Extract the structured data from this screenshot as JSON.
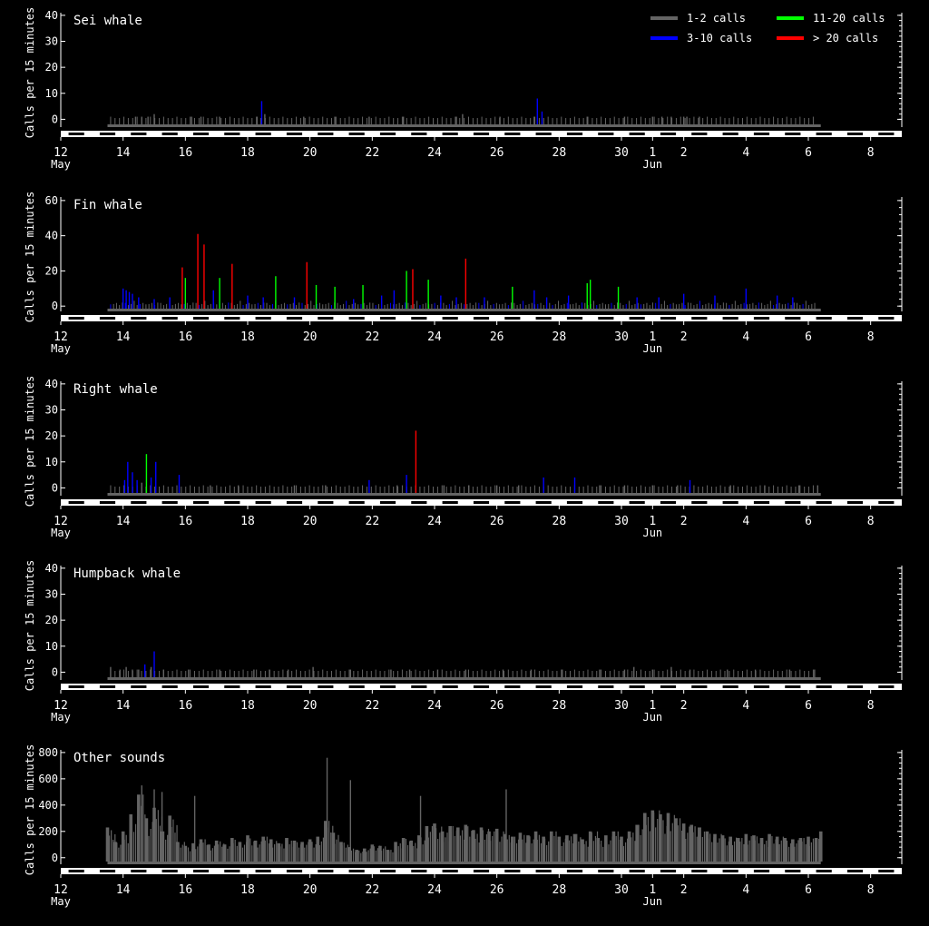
{
  "legend": {
    "position": "top-right",
    "items": [
      {
        "label": "1-2 calls",
        "color": "#646464"
      },
      {
        "label": "3-10 calls",
        "color": "#0000ff"
      },
      {
        "label": "11-20 calls",
        "color": "#00ff00"
      },
      {
        "label": "> 20 calls",
        "color": "#ff0000"
      }
    ]
  },
  "xaxis": {
    "tick_labels": [
      "12",
      "14",
      "16",
      "18",
      "20",
      "22",
      "24",
      "26",
      "28",
      "30",
      "1",
      "2",
      "4",
      "6",
      "8"
    ],
    "tick_days": [
      12,
      14,
      16,
      18,
      20,
      22,
      24,
      26,
      28,
      30,
      31,
      32,
      34,
      36,
      38
    ],
    "month_labels": [
      {
        "label": "May",
        "day": 12
      },
      {
        "label": "Jun",
        "day": 31
      }
    ],
    "range_days": [
      12,
      39
    ]
  },
  "chart_data": [
    {
      "type": "bar",
      "title": "Sei whale",
      "ylabel": "Calls per 15 minutes",
      "ylim": [
        -3,
        41
      ],
      "yticks": [
        "0",
        "10",
        "20",
        "30",
        "40"
      ],
      "ytick_values": [
        0,
        10,
        20,
        30,
        40
      ],
      "x_unit": "day (May 12 = 12, Jun 1 = 31)",
      "background_low": true,
      "x": [
        14.4,
        14.6,
        14.8,
        15.0,
        16.2,
        16.5,
        17.1,
        18.3,
        18.45,
        18.55,
        19.8,
        20.8,
        21.9,
        23.0,
        24.7,
        24.9,
        26.1,
        27.2,
        27.3,
        27.45,
        28.9,
        30.1,
        31.0,
        31.3,
        31.6,
        32.0,
        32.1,
        32.5
      ],
      "values": [
        1,
        1,
        1,
        2,
        1,
        1,
        1,
        1,
        7,
        2,
        1,
        1,
        1,
        1,
        1,
        2,
        1,
        1,
        8,
        3,
        1,
        1,
        1,
        1,
        1,
        1,
        1,
        1
      ]
    },
    {
      "type": "bar",
      "title": "Fin whale",
      "ylabel": "Calls per 15 minutes",
      "ylim": [
        -3,
        62
      ],
      "yticks": [
        "0",
        "20",
        "40",
        "60"
      ],
      "ytick_values": [
        0,
        20,
        40,
        60
      ],
      "x_unit": "day (May 12 = 12, Jun 1 = 31)",
      "background_high": true,
      "x": [
        14.0,
        14.1,
        14.2,
        14.3,
        14.5,
        15.0,
        15.5,
        15.9,
        16.0,
        16.4,
        16.6,
        16.9,
        17.1,
        17.5,
        18.0,
        18.5,
        18.9,
        19.5,
        19.9,
        20.2,
        20.8,
        21.4,
        21.7,
        22.3,
        22.7,
        23.1,
        23.3,
        23.8,
        24.2,
        24.7,
        25.0,
        25.6,
        26.5,
        27.2,
        27.6,
        28.3,
        28.9,
        29.0,
        29.9,
        30.5,
        31.2,
        32.0,
        33.0,
        34.0,
        35.0,
        35.5
      ],
      "values": [
        10,
        9,
        8,
        7,
        5,
        4,
        5,
        22,
        16,
        41,
        35,
        9,
        16,
        24,
        6,
        5,
        17,
        5,
        25,
        12,
        11,
        4,
        12,
        6,
        9,
        20,
        21,
        15,
        6,
        5,
        27,
        5,
        11,
        9,
        5,
        6,
        13,
        15,
        11,
        5,
        5,
        7,
        6,
        10,
        6,
        5
      ]
    },
    {
      "type": "bar",
      "title": "Right whale",
      "ylabel": "Calls per 15 minutes",
      "ylim": [
        -3,
        41
      ],
      "yticks": [
        "0",
        "10",
        "20",
        "30",
        "40"
      ],
      "ytick_values": [
        0,
        10,
        20,
        30,
        40
      ],
      "x_unit": "day (May 12 = 12, Jun 1 = 31)",
      "background_low": true,
      "x": [
        14.05,
        14.15,
        14.3,
        14.45,
        14.6,
        14.75,
        14.9,
        15.05,
        15.8,
        16.8,
        17.7,
        19.5,
        20.5,
        21.9,
        22.8,
        23.1,
        23.4,
        24.3,
        25.1,
        26.0,
        26.7,
        27.5,
        28.5,
        29.3,
        30.1,
        31.0,
        31.8,
        32.2,
        33.5,
        34.6,
        35.7,
        36.3
      ],
      "values": [
        3,
        10,
        6,
        3,
        2,
        13,
        4,
        10,
        5,
        1,
        1,
        1,
        1,
        3,
        1,
        5,
        22,
        1,
        1,
        1,
        1,
        4,
        4,
        1,
        1,
        1,
        1,
        3,
        1,
        1,
        1,
        1
      ]
    },
    {
      "type": "bar",
      "title": "Humpback whale",
      "ylabel": "Calls per 15 minutes",
      "ylim": [
        -3,
        41
      ],
      "yticks": [
        "0",
        "10",
        "20",
        "30",
        "40"
      ],
      "ytick_values": [
        0,
        10,
        20,
        30,
        40
      ],
      "x_unit": "day (May 12 = 12, Jun 1 = 31)",
      "background_low": true,
      "x": [
        13.6,
        13.9,
        14.1,
        14.3,
        14.5,
        14.7,
        14.9,
        15.0,
        15.3,
        16.1,
        17.1,
        18.2,
        18.7,
        19.3,
        20.1,
        21.3,
        22.6,
        23.2,
        24.1,
        25.0,
        26.2,
        27.1,
        28.1,
        29.3,
        30.1,
        30.4,
        31.0,
        31.6,
        32.2,
        33.4,
        34.3,
        35.4,
        36.2
      ],
      "values": [
        2,
        1,
        2,
        1,
        1,
        3,
        2,
        8,
        1,
        1,
        1,
        1,
        1,
        1,
        2,
        1,
        1,
        1,
        1,
        1,
        1,
        1,
        1,
        1,
        1,
        2,
        1,
        2,
        1,
        1,
        1,
        1,
        1
      ]
    },
    {
      "type": "bar",
      "title": "Other sounds",
      "ylabel": "Calls per 15 minutes",
      "ylim": [
        -50,
        820
      ],
      "yticks": [
        "0",
        "200",
        "400",
        "600",
        "800"
      ],
      "ytick_values": [
        0,
        200,
        400,
        600,
        800
      ],
      "x_unit": "day (May 12 = 12, Jun 1 = 31)",
      "color": "#646464",
      "x": [
        13.5,
        13.75,
        14.0,
        14.25,
        14.5,
        14.75,
        15.0,
        15.25,
        15.5,
        15.75,
        16.0,
        16.25,
        16.5,
        16.75,
        17.0,
        17.25,
        17.5,
        17.75,
        18.0,
        18.25,
        18.5,
        18.75,
        19.0,
        19.25,
        19.5,
        19.75,
        20.0,
        20.25,
        20.5,
        20.75,
        21.0,
        21.25,
        21.5,
        21.75,
        22.0,
        22.25,
        22.5,
        22.75,
        23.0,
        23.25,
        23.5,
        23.75,
        24.0,
        24.25,
        24.5,
        24.75,
        25.0,
        25.25,
        25.5,
        25.75,
        26.0,
        26.25,
        26.5,
        26.75,
        27.0,
        27.25,
        27.5,
        27.75,
        28.0,
        28.25,
        28.5,
        28.75,
        29.0,
        29.25,
        29.5,
        29.75,
        30.0,
        30.25,
        30.5,
        30.75,
        31.0,
        31.25,
        31.5,
        31.75,
        32.0,
        32.25,
        32.5,
        32.75,
        33.0,
        33.25,
        33.5,
        33.75,
        34.0,
        34.25,
        34.5,
        34.75,
        35.0,
        35.25,
        35.5,
        35.75,
        36.0,
        36.25,
        36.4
      ],
      "values": [
        230,
        120,
        200,
        330,
        480,
        300,
        380,
        200,
        320,
        120,
        90,
        110,
        140,
        100,
        130,
        100,
        150,
        120,
        170,
        130,
        160,
        140,
        110,
        150,
        130,
        120,
        140,
        160,
        280,
        190,
        120,
        80,
        60,
        70,
        100,
        90,
        60,
        120,
        150,
        130,
        170,
        240,
        260,
        200,
        240,
        230,
        250,
        210,
        230,
        200,
        220,
        180,
        160,
        190,
        170,
        200,
        160,
        200,
        160,
        170,
        180,
        140,
        200,
        150,
        170,
        200,
        160,
        200,
        250,
        340,
        360,
        330,
        340,
        300,
        260,
        250,
        230,
        200,
        180,
        170,
        160,
        150,
        180,
        170,
        150,
        180,
        160,
        150,
        140,
        150,
        160,
        150,
        200
      ],
      "spikes_x": [
        14.6,
        15.0,
        15.25,
        16.3,
        20.55,
        21.3,
        23.55,
        26.3
      ],
      "spikes_values": [
        550,
        520,
        500,
        470,
        760,
        590,
        470,
        520
      ]
    }
  ]
}
